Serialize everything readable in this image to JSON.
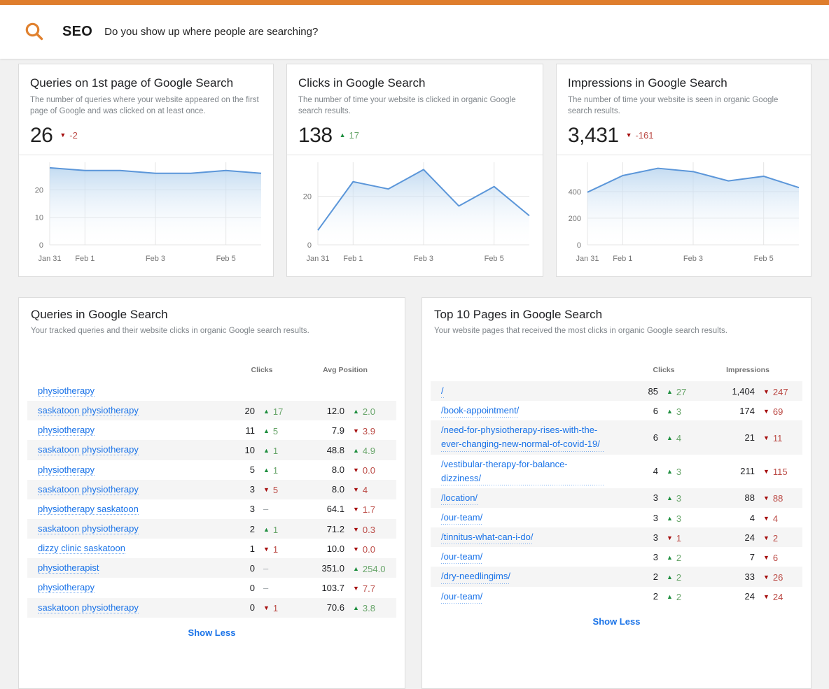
{
  "colors": {
    "accent": "#df7d2c",
    "link": "#1a73e8",
    "up": "#1e8e3e",
    "up_text": "#68a56a",
    "down": "#a50e0e",
    "down_text": "#bb4a45",
    "chart_line": "#5b96d9",
    "chart_fill_top": "#b9d5ef"
  },
  "header": {
    "title": "SEO",
    "subtitle": "Do you show up where people are searching?"
  },
  "scorecards": [
    {
      "title": "Queries on 1st page of Google Search",
      "description": "The number of queries where your website appeared on the first page of Google and was clicked on at least once.",
      "value": "26",
      "delta": {
        "dir": "down",
        "text": "-2"
      }
    },
    {
      "title": "Clicks in Google Search",
      "description": "The number of time your website is clicked in organic Google search results.",
      "value": "138",
      "delta": {
        "dir": "up",
        "text": "17"
      }
    },
    {
      "title": "Impressions in Google Search",
      "description": "The number of time your website is seen in organic Google search results.",
      "value": "3,431",
      "delta": {
        "dir": "down",
        "text": "-161"
      }
    }
  ],
  "chart_data": [
    {
      "type": "area",
      "title": "Queries on 1st page of Google Search - daily trend",
      "x": [
        "Jan 31",
        "Feb 1",
        "Feb 2",
        "Feb 3",
        "Feb 4",
        "Feb 5",
        "Feb 6"
      ],
      "values": [
        28,
        27,
        27,
        26,
        26,
        27,
        26
      ],
      "ylim": [
        0,
        30
      ],
      "yticks": [
        0,
        10,
        20
      ],
      "xticks": [
        [
          0,
          "Jan 31"
        ],
        [
          1,
          "Feb 1"
        ],
        [
          3,
          "Feb 3"
        ],
        [
          5,
          "Feb 5"
        ]
      ],
      "vgrid": [
        0,
        1,
        3,
        5
      ],
      "xlabel": "",
      "ylabel": "",
      "grid": true,
      "legend": false
    },
    {
      "type": "area",
      "title": "Clicks in Google Search - daily trend",
      "x": [
        "Jan 31",
        "Feb 1",
        "Feb 2",
        "Feb 3",
        "Feb 4",
        "Feb 5",
        "Feb 6"
      ],
      "values": [
        6,
        26,
        23,
        31,
        16,
        24,
        12
      ],
      "ylim": [
        0,
        34
      ],
      "yticks": [
        0,
        20
      ],
      "xticks": [
        [
          0,
          "Jan 31"
        ],
        [
          1,
          "Feb 1"
        ],
        [
          3,
          "Feb 3"
        ],
        [
          5,
          "Feb 5"
        ]
      ],
      "vgrid": [
        0,
        1,
        3,
        5
      ],
      "xlabel": "",
      "ylabel": "",
      "grid": true,
      "legend": false
    },
    {
      "type": "area",
      "title": "Impressions in Google Search - daily trend",
      "x": [
        "Jan 31",
        "Feb 1",
        "Feb 2",
        "Feb 3",
        "Feb 4",
        "Feb 5",
        "Feb 6"
      ],
      "values": [
        395,
        520,
        575,
        550,
        480,
        515,
        430
      ],
      "ylim": [
        0,
        620
      ],
      "yticks": [
        0,
        200,
        400
      ],
      "xticks": [
        [
          0,
          "Jan 31"
        ],
        [
          1,
          "Feb 1"
        ],
        [
          3,
          "Feb 3"
        ],
        [
          5,
          "Feb 5"
        ]
      ],
      "vgrid": [
        0,
        1,
        3,
        5
      ],
      "xlabel": "",
      "ylabel": "",
      "grid": true,
      "legend": false
    }
  ],
  "tables": {
    "queries": {
      "title": "Queries in Google Search",
      "subtitle": "Your tracked queries and their website clicks in organic Google search results.",
      "columns": [
        "Clicks",
        "Avg Position"
      ],
      "footer": "Show Less",
      "rows": [
        {
          "name": "physiotherapy",
          "c1": "",
          "d1": null,
          "c2": "",
          "d2": null
        },
        {
          "name": "saskatoon physiotherapy",
          "c1": "20",
          "d1": {
            "dir": "up",
            "text": "17"
          },
          "c2": "12.0",
          "d2": {
            "dir": "up",
            "text": "2.0"
          }
        },
        {
          "name": "physiotherapy",
          "c1": "11",
          "d1": {
            "dir": "up",
            "text": "5"
          },
          "c2": "7.9",
          "d2": {
            "dir": "down",
            "text": "3.9"
          }
        },
        {
          "name": "saskatoon physiotherapy",
          "c1": "10",
          "d1": {
            "dir": "up",
            "text": "1"
          },
          "c2": "48.8",
          "d2": {
            "dir": "up",
            "text": "4.9"
          }
        },
        {
          "name": "physiotherapy",
          "c1": "5",
          "d1": {
            "dir": "up",
            "text": "1"
          },
          "c2": "8.0",
          "d2": {
            "dir": "down",
            "text": "0.0"
          }
        },
        {
          "name": "saskatoon physiotherapy",
          "c1": "3",
          "d1": {
            "dir": "down",
            "text": "5"
          },
          "c2": "8.0",
          "d2": {
            "dir": "down",
            "text": "4"
          }
        },
        {
          "name": "physiotherapy saskatoon",
          "c1": "3",
          "d1": {
            "dir": "flat"
          },
          "c2": "64.1",
          "d2": {
            "dir": "down",
            "text": "1.7"
          }
        },
        {
          "name": "saskatoon physiotherapy",
          "c1": "2",
          "d1": {
            "dir": "up",
            "text": "1"
          },
          "c2": "71.2",
          "d2": {
            "dir": "down",
            "text": "0.3"
          }
        },
        {
          "name": "dizzy clinic saskatoon",
          "c1": "1",
          "d1": {
            "dir": "down",
            "text": "1"
          },
          "c2": "10.0",
          "d2": {
            "dir": "down",
            "text": "0.0"
          }
        },
        {
          "name": "physiotherapist",
          "c1": "0",
          "d1": {
            "dir": "flat"
          },
          "c2": "351.0",
          "d2": {
            "dir": "up",
            "text": "254.0"
          }
        },
        {
          "name": "physiotherapy",
          "c1": "0",
          "d1": {
            "dir": "flat"
          },
          "c2": "103.7",
          "d2": {
            "dir": "down",
            "text": "7.7"
          }
        },
        {
          "name": "saskatoon physiotherapy",
          "c1": "0",
          "d1": {
            "dir": "down",
            "text": "1"
          },
          "c2": "70.6",
          "d2": {
            "dir": "up",
            "text": "3.8"
          }
        }
      ]
    },
    "pages": {
      "title": "Top 10 Pages in Google Search",
      "subtitle": "Your website pages that received the most clicks in organic Google search results.",
      "columns": [
        "Clicks",
        "Impressions"
      ],
      "footer": "Show Less",
      "rows": [
        {
          "name": "/",
          "c1": "85",
          "d1": {
            "dir": "up",
            "text": "27"
          },
          "c2": "1,404",
          "d2": {
            "dir": "down",
            "text": "247"
          }
        },
        {
          "name": "/book-appointment/",
          "c1": "6",
          "d1": {
            "dir": "up",
            "text": "3"
          },
          "c2": "174",
          "d2": {
            "dir": "down",
            "text": "69"
          }
        },
        {
          "name": "/need-for-physiotherapy-rises-with-the-ever-changing-new-normal-of-covid-19/",
          "c1": "6",
          "d1": {
            "dir": "up",
            "text": "4"
          },
          "c2": "21",
          "d2": {
            "dir": "down",
            "text": "11"
          }
        },
        {
          "name": "/vestibular-therapy-for-balance-dizziness/",
          "c1": "4",
          "d1": {
            "dir": "up",
            "text": "3"
          },
          "c2": "211",
          "d2": {
            "dir": "down",
            "text": "115"
          }
        },
        {
          "name": "/location/",
          "c1": "3",
          "d1": {
            "dir": "up",
            "text": "3"
          },
          "c2": "88",
          "d2": {
            "dir": "down",
            "text": "88"
          }
        },
        {
          "name": "/our-team/",
          "c1": "3",
          "d1": {
            "dir": "up",
            "text": "3"
          },
          "c2": "4",
          "d2": {
            "dir": "down",
            "text": "4"
          }
        },
        {
          "name": "/tinnitus-what-can-i-do/",
          "c1": "3",
          "d1": {
            "dir": "down",
            "text": "1"
          },
          "c2": "24",
          "d2": {
            "dir": "down",
            "text": "2"
          }
        },
        {
          "name": "/our-team/",
          "c1": "3",
          "d1": {
            "dir": "up",
            "text": "2"
          },
          "c2": "7",
          "d2": {
            "dir": "down",
            "text": "6"
          }
        },
        {
          "name": "/dry-needlingims/",
          "c1": "2",
          "d1": {
            "dir": "up",
            "text": "2"
          },
          "c2": "33",
          "d2": {
            "dir": "down",
            "text": "26"
          }
        },
        {
          "name": "/our-team/",
          "c1": "2",
          "d1": {
            "dir": "up",
            "text": "2"
          },
          "c2": "24",
          "d2": {
            "dir": "down",
            "text": "24"
          }
        }
      ]
    }
  }
}
